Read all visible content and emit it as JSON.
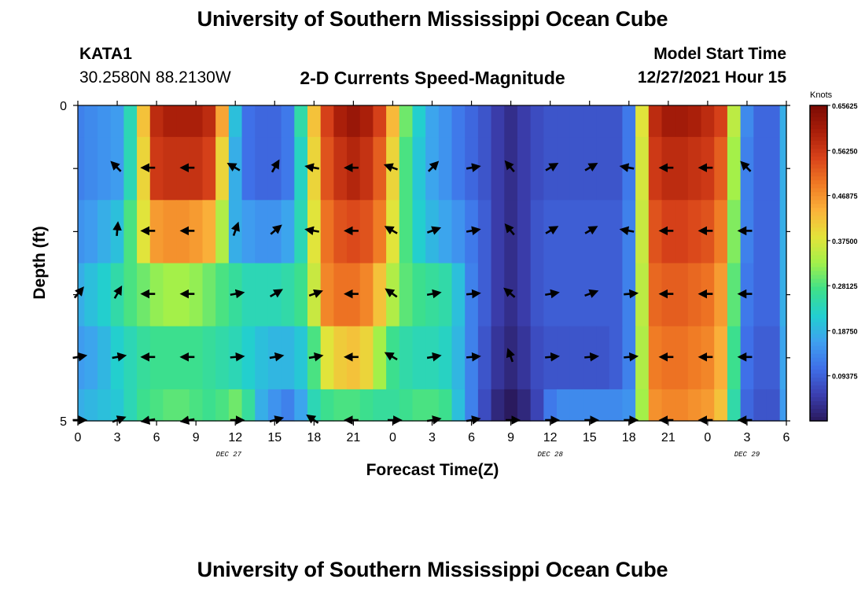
{
  "header": {
    "title": "University of Southern Mississippi Ocean Cube",
    "station_id": "KATA1",
    "station_coords": "30.2580N  88.2130W",
    "product_title": "2-D Currents Speed-Magnitude",
    "model_start_label": "Model Start Time",
    "model_start_time": "12/27/2021 Hour 15"
  },
  "footer": {
    "title": "University of Southern Mississippi Ocean Cube"
  },
  "colors": {
    "colormap": [
      "#2a1a5e",
      "#3b3fb0",
      "#3f6fe8",
      "#3fa0f0",
      "#22cfd0",
      "#3ee08a",
      "#a2f04a",
      "#e4e33a",
      "#fbb23a",
      "#f07a24",
      "#d8421a",
      "#a91e0a",
      "#7a0a04"
    ]
  },
  "chart_data": {
    "type": "heatmap",
    "title": "2-D Currents Speed-Magnitude",
    "xlabel": "Forecast Time(Z)",
    "ylabel": "Depth (ft)",
    "x_tick_labels": [
      "0",
      "3",
      "6",
      "9",
      "12",
      "15",
      "18",
      "21",
      "0",
      "3",
      "6",
      "9",
      "12",
      "15",
      "18",
      "21",
      "0",
      "3",
      "6"
    ],
    "x_hours": [
      0,
      3,
      6,
      9,
      12,
      15,
      18,
      21,
      24,
      27,
      30,
      33,
      36,
      39,
      42,
      45,
      48,
      51,
      54
    ],
    "date_labels": [
      {
        "text": "DEC 27",
        "hour": 11.5
      },
      {
        "text": "DEC 28",
        "hour": 36
      },
      {
        "text": "DEC 29",
        "hour": 51
      }
    ],
    "y_tick_labels": [
      "0",
      "5"
    ],
    "ylim": [
      0,
      5
    ],
    "xlim": [
      0,
      54
    ],
    "colorbar": {
      "label": "Knots",
      "min": 0,
      "max": 0.65625,
      "tick_labels": [
        "0.65625",
        "0.56250",
        "0.46875",
        "0.37500",
        "0.28125",
        "0.18750",
        "0.09375"
      ],
      "tick_values": [
        0.65625,
        0.5625,
        0.46875,
        0.375,
        0.28125,
        0.1875,
        0.09375
      ]
    },
    "time_hours": [
      0,
      1,
      2,
      3,
      4,
      5,
      6,
      7,
      8,
      9,
      10,
      11,
      12,
      13,
      14,
      15,
      16,
      17,
      18,
      19,
      20,
      21,
      22,
      23,
      24,
      25,
      26,
      27,
      28,
      29,
      30,
      31,
      32,
      33,
      34,
      35,
      36,
      37,
      38,
      39,
      40,
      41,
      42,
      43,
      44,
      45,
      46,
      47,
      48,
      49,
      50,
      51,
      52,
      53,
      54
    ],
    "depth_levels_ft": [
      0,
      1,
      2,
      3,
      4,
      5
    ],
    "speed_knots": [
      [
        0.13,
        0.14,
        0.15,
        0.16,
        0.24,
        0.42,
        0.58,
        0.6,
        0.6,
        0.6,
        0.58,
        0.45,
        0.2,
        0.11,
        0.1,
        0.1,
        0.12,
        0.25,
        0.42,
        0.55,
        0.6,
        0.62,
        0.6,
        0.55,
        0.43,
        0.3,
        0.22,
        0.17,
        0.15,
        0.12,
        0.1,
        0.08,
        0.05,
        0.03,
        0.05,
        0.07,
        0.08,
        0.08,
        0.08,
        0.08,
        0.08,
        0.08,
        0.12,
        0.38,
        0.58,
        0.61,
        0.61,
        0.6,
        0.58,
        0.55,
        0.35,
        0.14,
        0.1,
        0.1,
        0.18
      ],
      [
        0.13,
        0.14,
        0.15,
        0.16,
        0.24,
        0.4,
        0.56,
        0.57,
        0.57,
        0.57,
        0.55,
        0.4,
        0.18,
        0.11,
        0.1,
        0.1,
        0.12,
        0.23,
        0.4,
        0.53,
        0.57,
        0.59,
        0.57,
        0.52,
        0.4,
        0.28,
        0.21,
        0.17,
        0.15,
        0.12,
        0.1,
        0.08,
        0.05,
        0.03,
        0.05,
        0.07,
        0.08,
        0.08,
        0.08,
        0.08,
        0.08,
        0.08,
        0.12,
        0.37,
        0.56,
        0.58,
        0.58,
        0.57,
        0.56,
        0.52,
        0.33,
        0.13,
        0.1,
        0.1,
        0.18
      ],
      [
        0.15,
        0.16,
        0.18,
        0.2,
        0.28,
        0.38,
        0.46,
        0.47,
        0.47,
        0.46,
        0.44,
        0.34,
        0.18,
        0.16,
        0.15,
        0.15,
        0.17,
        0.24,
        0.38,
        0.5,
        0.53,
        0.54,
        0.53,
        0.49,
        0.38,
        0.28,
        0.22,
        0.19,
        0.17,
        0.15,
        0.12,
        0.09,
        0.05,
        0.03,
        0.05,
        0.08,
        0.09,
        0.09,
        0.09,
        0.09,
        0.09,
        0.09,
        0.13,
        0.36,
        0.53,
        0.55,
        0.55,
        0.54,
        0.53,
        0.49,
        0.31,
        0.13,
        0.1,
        0.1,
        0.18
      ],
      [
        0.18,
        0.2,
        0.22,
        0.25,
        0.28,
        0.3,
        0.32,
        0.33,
        0.33,
        0.32,
        0.3,
        0.28,
        0.26,
        0.24,
        0.24,
        0.24,
        0.25,
        0.27,
        0.36,
        0.48,
        0.5,
        0.5,
        0.48,
        0.42,
        0.34,
        0.29,
        0.27,
        0.26,
        0.25,
        0.2,
        0.13,
        0.09,
        0.05,
        0.03,
        0.05,
        0.08,
        0.09,
        0.09,
        0.09,
        0.09,
        0.09,
        0.09,
        0.13,
        0.35,
        0.51,
        0.52,
        0.52,
        0.51,
        0.5,
        0.46,
        0.29,
        0.12,
        0.1,
        0.1,
        0.18
      ],
      [
        0.16,
        0.17,
        0.19,
        0.22,
        0.24,
        0.26,
        0.27,
        0.27,
        0.27,
        0.27,
        0.26,
        0.25,
        0.24,
        0.22,
        0.2,
        0.19,
        0.19,
        0.21,
        0.28,
        0.38,
        0.41,
        0.42,
        0.4,
        0.33,
        0.27,
        0.25,
        0.24,
        0.24,
        0.23,
        0.19,
        0.13,
        0.08,
        0.04,
        0.02,
        0.04,
        0.07,
        0.08,
        0.08,
        0.08,
        0.08,
        0.08,
        0.09,
        0.13,
        0.34,
        0.49,
        0.5,
        0.5,
        0.49,
        0.48,
        0.44,
        0.27,
        0.11,
        0.09,
        0.09,
        0.17
      ],
      [
        0.18,
        0.19,
        0.2,
        0.21,
        0.24,
        0.27,
        0.28,
        0.29,
        0.29,
        0.28,
        0.27,
        0.28,
        0.3,
        0.26,
        0.18,
        0.15,
        0.13,
        0.17,
        0.24,
        0.27,
        0.28,
        0.28,
        0.27,
        0.26,
        0.26,
        0.27,
        0.28,
        0.28,
        0.27,
        0.2,
        0.13,
        0.07,
        0.02,
        0.0,
        0.02,
        0.06,
        0.12,
        0.14,
        0.14,
        0.14,
        0.14,
        0.14,
        0.15,
        0.33,
        0.47,
        0.48,
        0.48,
        0.47,
        0.46,
        0.42,
        0.25,
        0.1,
        0.08,
        0.08,
        0.16
      ]
    ],
    "vector_rows_depth_ft": [
      1,
      2,
      3,
      4,
      5
    ],
    "vector_columns_hours": [
      0,
      3,
      5.5,
      8.5,
      12,
      15,
      18,
      21,
      24,
      27,
      30,
      33,
      36,
      39,
      42,
      45,
      48,
      51
    ],
    "vector_directions_deg": [
      [
        null,
        135,
        180,
        180,
        150,
        60,
        170,
        180,
        160,
        45,
        10,
        130,
        30,
        30,
        170,
        180,
        180,
        135
      ],
      [
        null,
        85,
        180,
        180,
        70,
        40,
        170,
        180,
        150,
        20,
        10,
        130,
        30,
        30,
        170,
        180,
        180,
        180
      ],
      [
        50,
        60,
        180,
        180,
        10,
        30,
        20,
        180,
        145,
        10,
        5,
        140,
        10,
        20,
        5,
        180,
        180,
        180
      ],
      [
        10,
        10,
        180,
        180,
        5,
        10,
        10,
        180,
        150,
        10,
        5,
        110,
        5,
        5,
        5,
        180,
        180,
        180
      ],
      [
        0,
        20,
        190,
        190,
        0,
        15,
        145,
        180,
        0,
        10,
        10,
        0,
        0,
        0,
        0,
        180,
        180,
        180
      ]
    ]
  }
}
